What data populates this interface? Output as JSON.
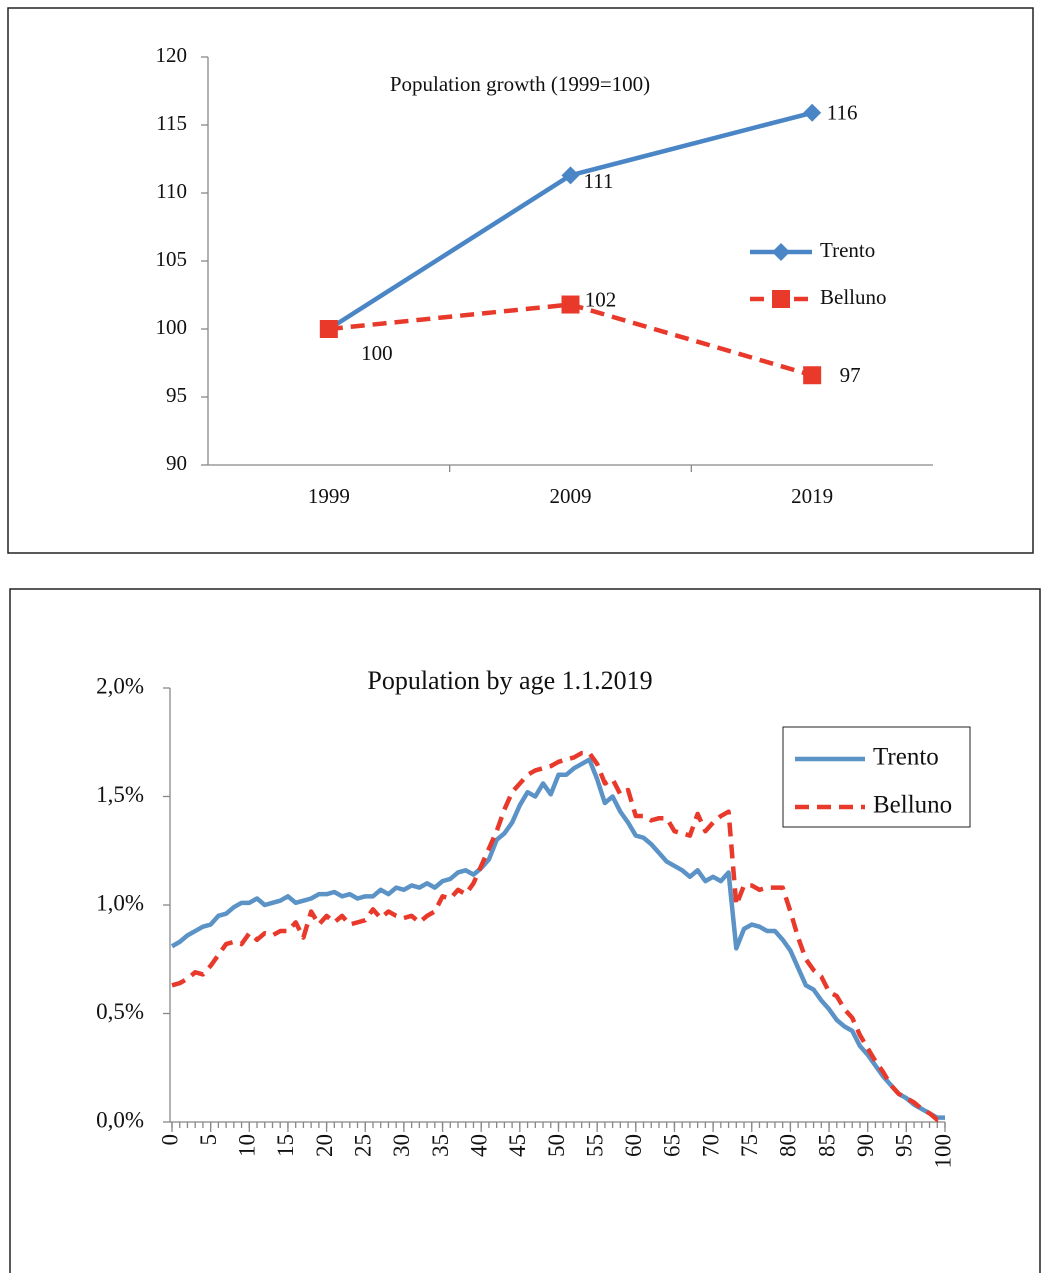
{
  "chart_data": [
    {
      "type": "line",
      "title": "Population growth (1999=100)",
      "categories": [
        "1999",
        "2009",
        "2019"
      ],
      "series": [
        {
          "name": "Trento",
          "color": "#4a86c6",
          "marker": "diamond",
          "line_style": "solid",
          "values": [
            100,
            111.3,
            115.9
          ],
          "value_labels": [
            null,
            "111",
            "116"
          ]
        },
        {
          "name": "Belluno",
          "color": "#e8392b",
          "marker": "square",
          "line_style": "dashed",
          "values": [
            100,
            101.8,
            96.6
          ],
          "value_labels": [
            "100",
            "102",
            "97"
          ]
        }
      ],
      "ylim": [
        90,
        120
      ],
      "yticks": [
        90,
        95,
        100,
        105,
        110,
        115,
        120
      ],
      "grid": false,
      "legend": "right"
    },
    {
      "type": "line",
      "title": "Population by age 1.1.2019",
      "x": [
        0,
        1,
        2,
        3,
        4,
        5,
        6,
        7,
        8,
        9,
        10,
        11,
        12,
        13,
        14,
        15,
        16,
        17,
        18,
        19,
        20,
        21,
        22,
        23,
        24,
        25,
        26,
        27,
        28,
        29,
        30,
        31,
        32,
        33,
        34,
        35,
        36,
        37,
        38,
        39,
        40,
        41,
        42,
        43,
        44,
        45,
        46,
        47,
        48,
        49,
        50,
        51,
        52,
        53,
        54,
        55,
        56,
        57,
        58,
        59,
        60,
        61,
        62,
        63,
        64,
        65,
        66,
        67,
        68,
        69,
        70,
        71,
        72,
        73,
        74,
        75,
        76,
        77,
        78,
        79,
        80,
        81,
        82,
        83,
        84,
        85,
        86,
        87,
        88,
        89,
        90,
        91,
        92,
        93,
        94,
        95,
        96,
        97,
        98,
        99,
        100
      ],
      "series": [
        {
          "name": "Trento",
          "color": "#5b93c7",
          "line_style": "solid",
          "values": [
            0.81,
            0.83,
            0.86,
            0.88,
            0.9,
            0.91,
            0.95,
            0.96,
            0.99,
            1.01,
            1.01,
            1.03,
            1.0,
            1.01,
            1.02,
            1.04,
            1.01,
            1.02,
            1.03,
            1.05,
            1.05,
            1.06,
            1.04,
            1.05,
            1.03,
            1.04,
            1.04,
            1.07,
            1.05,
            1.08,
            1.07,
            1.09,
            1.08,
            1.1,
            1.08,
            1.11,
            1.12,
            1.15,
            1.16,
            1.14,
            1.17,
            1.21,
            1.3,
            1.33,
            1.38,
            1.46,
            1.52,
            1.5,
            1.56,
            1.51,
            1.6,
            1.6,
            1.63,
            1.65,
            1.67,
            1.58,
            1.47,
            1.5,
            1.43,
            1.38,
            1.32,
            1.31,
            1.28,
            1.24,
            1.2,
            1.18,
            1.16,
            1.13,
            1.16,
            1.11,
            1.13,
            1.11,
            1.15,
            0.8,
            0.89,
            0.91,
            0.9,
            0.88,
            0.88,
            0.84,
            0.79,
            0.71,
            0.63,
            0.61,
            0.56,
            0.52,
            0.47,
            0.44,
            0.42,
            0.35,
            0.31,
            0.26,
            0.21,
            0.17,
            0.13,
            0.11,
            0.08,
            0.06,
            0.04,
            0.02,
            0.02
          ]
        },
        {
          "name": "Belluno",
          "color": "#e8392b",
          "line_style": "dashed",
          "values": [
            0.63,
            0.64,
            0.66,
            0.69,
            0.68,
            0.72,
            0.77,
            0.82,
            0.83,
            0.82,
            0.87,
            0.84,
            0.87,
            0.86,
            0.88,
            0.88,
            0.92,
            0.85,
            0.97,
            0.91,
            0.95,
            0.92,
            0.95,
            0.91,
            0.92,
            0.93,
            0.98,
            0.94,
            0.97,
            0.95,
            0.94,
            0.95,
            0.92,
            0.95,
            0.97,
            1.04,
            1.03,
            1.07,
            1.05,
            1.1,
            1.18,
            1.26,
            1.34,
            1.44,
            1.52,
            1.56,
            1.6,
            1.62,
            1.63,
            1.64,
            1.66,
            1.67,
            1.68,
            1.7,
            1.7,
            1.65,
            1.56,
            1.58,
            1.51,
            1.53,
            1.41,
            1.41,
            1.39,
            1.4,
            1.4,
            1.34,
            1.33,
            1.32,
            1.42,
            1.34,
            1.38,
            1.41,
            1.43,
            1.0,
            1.09,
            1.09,
            1.07,
            1.08,
            1.08,
            1.08,
            0.97,
            0.85,
            0.75,
            0.7,
            0.67,
            0.6,
            0.58,
            0.52,
            0.48,
            0.4,
            0.34,
            0.28,
            0.23,
            0.17,
            0.13,
            0.11,
            0.09,
            0.06,
            0.04,
            0.01,
            0.02
          ]
        }
      ],
      "xlim": [
        0,
        100
      ],
      "xticks": [
        0,
        5,
        10,
        15,
        20,
        25,
        30,
        35,
        40,
        45,
        50,
        55,
        60,
        65,
        70,
        75,
        80,
        85,
        90,
        95,
        100
      ],
      "ylim": [
        0,
        2
      ],
      "yticks": [
        {
          "value": 0,
          "label": "0,0%"
        },
        {
          "value": 0.5,
          "label": "0,5%"
        },
        {
          "value": 1,
          "label": "1,0%"
        },
        {
          "value": 1.5,
          "label": "1,5%"
        },
        {
          "value": 2,
          "label": "2,0%"
        }
      ],
      "grid": false,
      "legend": "right"
    }
  ]
}
